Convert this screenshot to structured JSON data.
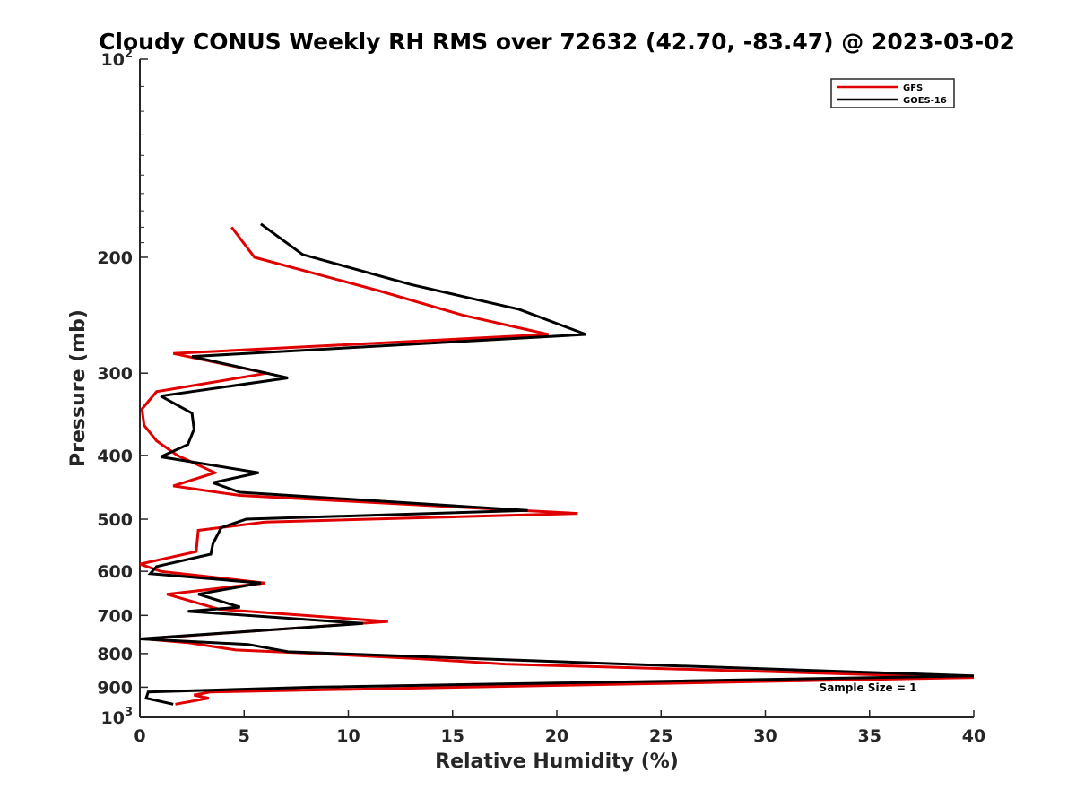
{
  "chart_data": {
    "type": "line",
    "title": "Cloudy CONUS Weekly RH RMS over 72632 (42.70, -83.47) @ 2023-03-02",
    "xlabel": "Relative Humidity (%)",
    "ylabel": "Pressure (mb)",
    "xlim": [
      0,
      40
    ],
    "ylim": [
      100,
      1000
    ],
    "y_scale": "log",
    "y_reversed": true,
    "grid": false,
    "legend_position": "top-right",
    "x_ticks": [
      "0",
      "5",
      "10",
      "15",
      "20",
      "25",
      "30",
      "35",
      "40"
    ],
    "y_ticks": [
      {
        "base": "10",
        "exp": "2",
        "value": 100
      },
      {
        "label": "200",
        "value": 200
      },
      {
        "label": "300",
        "value": 300
      },
      {
        "label": "400",
        "value": 400
      },
      {
        "label": "500",
        "value": 500
      },
      {
        "label": "600",
        "value": 600
      },
      {
        "label": "700",
        "value": 700
      },
      {
        "label": "800",
        "value": 800
      },
      {
        "label": "900",
        "value": 900
      },
      {
        "base": "10",
        "exp": "3",
        "value": 1000
      }
    ],
    "annotation": "Sample Size = 1",
    "series": [
      {
        "name": "GFS",
        "color": "#e00000",
        "points": [
          [
            4.4,
            180
          ],
          [
            5.5,
            200
          ],
          [
            11.5,
            225
          ],
          [
            15.5,
            245
          ],
          [
            19.6,
            262
          ],
          [
            1.6,
            280
          ],
          [
            6.1,
            300
          ],
          [
            0.8,
            320
          ],
          [
            0.1,
            340
          ],
          [
            0.2,
            360
          ],
          [
            0.8,
            380
          ],
          [
            1.8,
            400
          ],
          [
            3.6,
            425
          ],
          [
            1.6,
            445
          ],
          [
            4.8,
            460
          ],
          [
            21.0,
            490
          ],
          [
            6.0,
            505
          ],
          [
            2.8,
            520
          ],
          [
            2.7,
            560
          ],
          [
            0.0,
            585
          ],
          [
            1.0,
            600
          ],
          [
            6.0,
            625
          ],
          [
            1.3,
            650
          ],
          [
            3.8,
            685
          ],
          [
            11.9,
            715
          ],
          [
            0.2,
            760
          ],
          [
            2.3,
            770
          ],
          [
            4.6,
            790
          ],
          [
            8.5,
            800
          ],
          [
            13.5,
            815
          ],
          [
            17.5,
            830
          ],
          [
            40.0,
            870
          ],
          [
            3.4,
            915
          ],
          [
            2.6,
            925
          ],
          [
            3.3,
            935
          ],
          [
            1.7,
            955
          ]
        ]
      },
      {
        "name": "GOES-16",
        "color": "#000000",
        "points": [
          [
            5.8,
            178
          ],
          [
            7.8,
            198
          ],
          [
            13.0,
            220
          ],
          [
            18.2,
            240
          ],
          [
            21.4,
            262
          ],
          [
            2.5,
            283
          ],
          [
            7.1,
            305
          ],
          [
            1.0,
            325
          ],
          [
            2.5,
            345
          ],
          [
            2.6,
            365
          ],
          [
            2.3,
            385
          ],
          [
            1.0,
            402
          ],
          [
            5.7,
            425
          ],
          [
            3.5,
            440
          ],
          [
            4.8,
            455
          ],
          [
            18.6,
            485
          ],
          [
            5.1,
            500
          ],
          [
            3.9,
            515
          ],
          [
            3.5,
            545
          ],
          [
            3.4,
            565
          ],
          [
            0.8,
            590
          ],
          [
            0.5,
            605
          ],
          [
            5.8,
            625
          ],
          [
            2.8,
            650
          ],
          [
            4.8,
            680
          ],
          [
            2.3,
            690
          ],
          [
            10.7,
            720
          ],
          [
            0.0,
            760
          ],
          [
            5.2,
            775
          ],
          [
            7.1,
            795
          ],
          [
            23.3,
            830
          ],
          [
            40.0,
            865
          ],
          [
            8.3,
            900
          ],
          [
            0.4,
            915
          ],
          [
            0.3,
            935
          ],
          [
            1.6,
            955
          ]
        ]
      }
    ]
  }
}
